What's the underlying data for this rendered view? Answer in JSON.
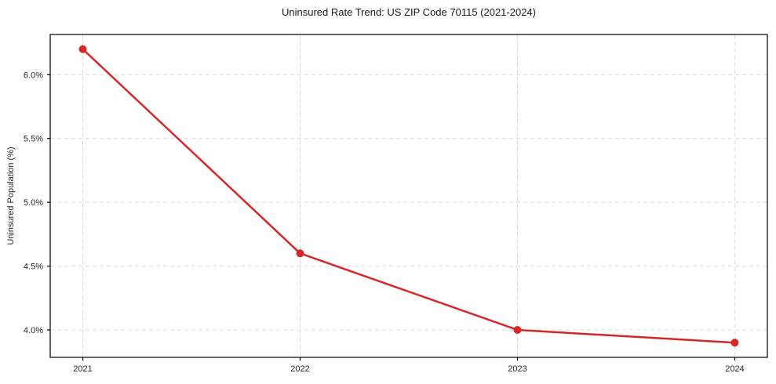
{
  "chart_data": {
    "type": "line",
    "title": "Uninsured Rate Trend: US ZIP Code 70115 (2021-2024)",
    "xlabel": "",
    "ylabel": "Uninsured Population (%)",
    "x": [
      2021,
      2022,
      2023,
      2024
    ],
    "xtick_labels": [
      "2021",
      "2022",
      "2023",
      "2024"
    ],
    "series": [
      {
        "name": "Uninsured rate",
        "values": [
          6.2,
          4.6,
          4.0,
          3.9
        ]
      }
    ],
    "yticks": [
      4.0,
      4.5,
      5.0,
      5.5,
      6.0
    ],
    "ytick_labels": [
      "4.0%",
      "4.5%",
      "5.0%",
      "5.5%",
      "6.0%"
    ],
    "xlim": [
      2020.85,
      2024.15
    ],
    "ylim": [
      3.785,
      6.315
    ],
    "grid": true,
    "legend": "none",
    "colors": {
      "line": "#d62728",
      "marker": "#d62728",
      "grid": "#d9d9d9",
      "spine": "#000000",
      "tick_text": "#262626",
      "background": "#ffffff"
    }
  }
}
